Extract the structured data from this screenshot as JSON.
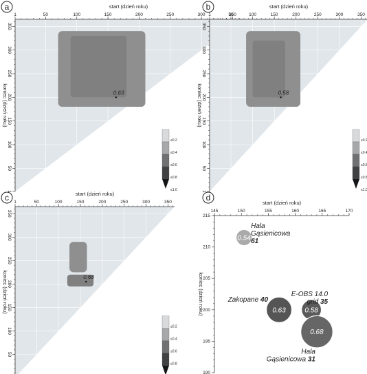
{
  "chart_data": [
    {
      "panel": "a",
      "type": "heatmap",
      "xlabel": "start (dzień roku)",
      "ylabel": "koniec (dzień roku)",
      "xticks": [
        1,
        50,
        100,
        150,
        200,
        250,
        300,
        350
      ],
      "yticks": [
        1,
        50,
        100,
        150,
        200,
        250,
        300,
        350
      ],
      "xlim": [
        1,
        365
      ],
      "ylim": [
        1,
        365
      ],
      "max_label": "0.63",
      "max_point": [
        163,
        200
      ],
      "legend": [
        "≤0.2",
        "≤0.4",
        "≤0.6",
        "≤0.8",
        "≤1.0"
      ],
      "region": {
        "core": [
          90,
          180,
          200,
          330
        ],
        "main": [
          70,
          210,
          180,
          340
        ]
      }
    },
    {
      "panel": "b",
      "type": "heatmap",
      "xlabel": "start (dzień roku)",
      "ylabel": "koniec (dzień roku)",
      "xticks": [
        1,
        50,
        100,
        150,
        200,
        250,
        300,
        350
      ],
      "yticks": [
        1,
        50,
        100,
        150,
        200,
        250,
        300,
        350
      ],
      "xlim": [
        1,
        365
      ],
      "ylim": [
        1,
        365
      ],
      "max_label": "0.58",
      "max_point": [
        165,
        200
      ],
      "legend": [
        "≤0.2",
        "≤0.4",
        "≤0.6",
        "≤0.8",
        "≤1.0"
      ],
      "region": {
        "core": [
          100,
          175,
          200,
          320
        ],
        "main": [
          85,
          210,
          180,
          340
        ]
      }
    },
    {
      "panel": "c",
      "type": "heatmap",
      "xlabel": "start (dzień roku)",
      "ylabel": "koniec (dzień roku)",
      "xticks": [
        1,
        50,
        100,
        150,
        200,
        250,
        300,
        350
      ],
      "yticks": [
        1,
        50,
        100,
        150,
        200,
        250,
        300,
        350
      ],
      "xlim": [
        1,
        365
      ],
      "ylim": [
        1,
        365
      ],
      "max_label": "0.68",
      "max_point": [
        163,
        205
      ],
      "legend": [
        "≤0.2",
        "≤0.4",
        "≤0.6",
        "≤0.8",
        "≤1.0"
      ],
      "region": {
        "core": [
          120,
          180,
          195,
          220
        ],
        "main": [
          125,
          165,
          225,
          290
        ]
      }
    },
    {
      "panel": "d",
      "type": "scatter",
      "xlabel": "start (dzień roku)",
      "ylabel": "koniec (dzień roku)",
      "xticks": [
        145,
        150,
        155,
        160,
        165,
        170
      ],
      "yticks": [
        190,
        195,
        200,
        205,
        210,
        215
      ],
      "xlim": [
        145,
        170
      ],
      "ylim": [
        190,
        215
      ],
      "points": [
        {
          "x": 150.5,
          "y": 211.5,
          "r": 0.54,
          "value": "0.54",
          "name": "Hala\nGąsienicowa",
          "n": "61",
          "color": "#aaaaaa"
        },
        {
          "x": 157.0,
          "y": 200.0,
          "r": 0.63,
          "value": "0.63",
          "name": "Zakopane",
          "n": "40",
          "color": "#555555"
        },
        {
          "x": 163.0,
          "y": 200.0,
          "r": 0.58,
          "value": "0.58",
          "name": "E-OBS 14.0\ngrid",
          "n": "35",
          "color": "#5a5a5a"
        },
        {
          "x": 164.0,
          "y": 196.5,
          "r": 0.68,
          "value": "0.68",
          "name": "Hala\nGąsienicowa",
          "n": "31",
          "color": "#666666"
        }
      ]
    }
  ]
}
